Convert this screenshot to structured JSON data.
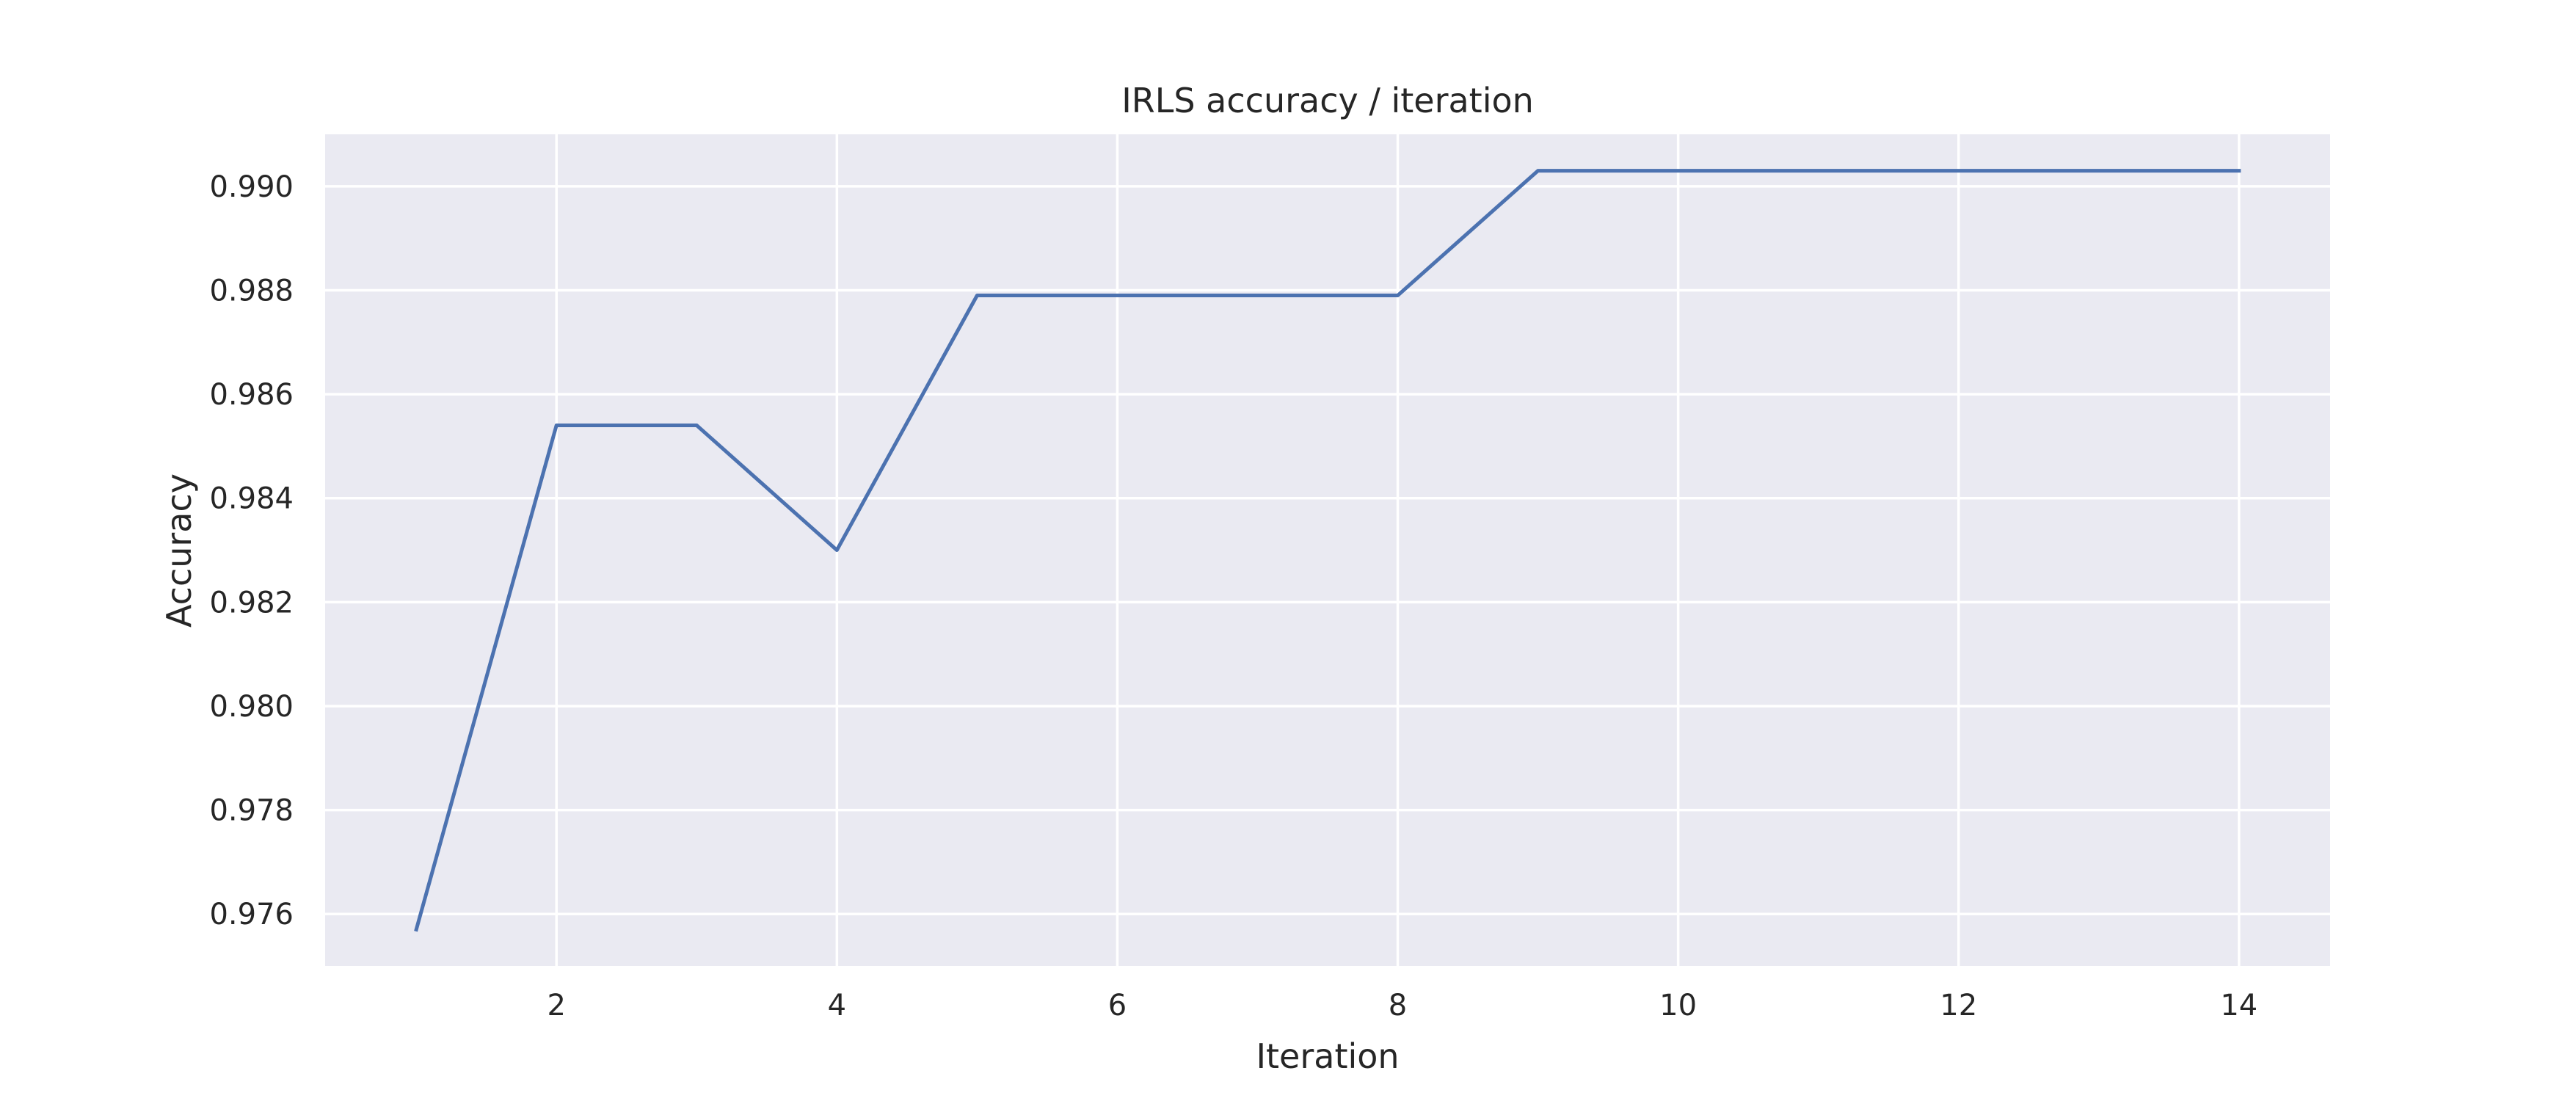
{
  "chart_data": {
    "type": "line",
    "title": "IRLS accuracy / iteration",
    "xlabel": "Iteration",
    "ylabel": "Accuracy",
    "xlim": [
      0.35,
      14.65
    ],
    "ylim": [
      0.975,
      0.991
    ],
    "xticks": [
      2,
      4,
      6,
      8,
      10,
      12,
      14
    ],
    "yticks": [
      0.976,
      0.978,
      0.98,
      0.982,
      0.984,
      0.986,
      0.988,
      0.99
    ],
    "ytick_labels": [
      "0.976",
      "0.978",
      "0.980",
      "0.982",
      "0.984",
      "0.986",
      "0.988",
      "0.990"
    ],
    "grid": true,
    "legend": "none",
    "colors": {
      "line": "#4c72b0",
      "plot_bg": "#eaeaf2",
      "grid": "#ffffff"
    },
    "series": [
      {
        "x": [
          1,
          2,
          3,
          4,
          5,
          6,
          7,
          8,
          9,
          10,
          11,
          12,
          13,
          14
        ],
        "y": [
          0.9757,
          0.9854,
          0.9854,
          0.983,
          0.9879,
          0.9879,
          0.9879,
          0.9879,
          0.9903,
          0.9903,
          0.9903,
          0.9903,
          0.9903,
          0.9903
        ]
      }
    ]
  }
}
